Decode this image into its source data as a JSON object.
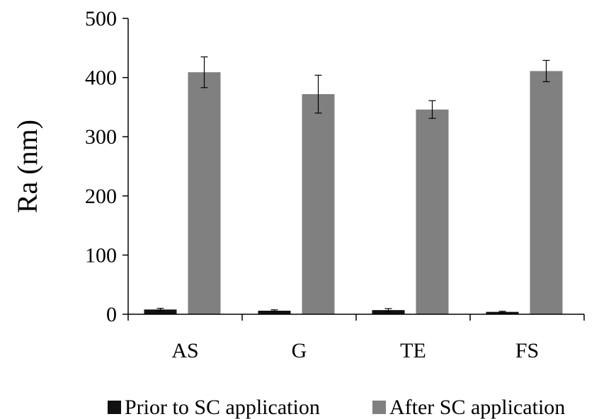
{
  "chart_data": {
    "type": "bar",
    "title": "",
    "xlabel": "",
    "ylabel": "Ra (nm)",
    "categories": [
      "AS",
      "G",
      "TE",
      "FS"
    ],
    "ylim": [
      0,
      500
    ],
    "yticks": [
      0,
      100,
      200,
      300,
      400,
      500
    ],
    "grid": false,
    "legend": "bottom",
    "series": [
      {
        "name": "Prior to SC application",
        "color": "#111111",
        "values": [
          8,
          6,
          7,
          4
        ],
        "errors": [
          2,
          1.5,
          2.5,
          1
        ]
      },
      {
        "name": "After SC application",
        "color": "#808080",
        "values": [
          409,
          372,
          346,
          411
        ],
        "errors": [
          26,
          32,
          15,
          18
        ]
      }
    ]
  }
}
